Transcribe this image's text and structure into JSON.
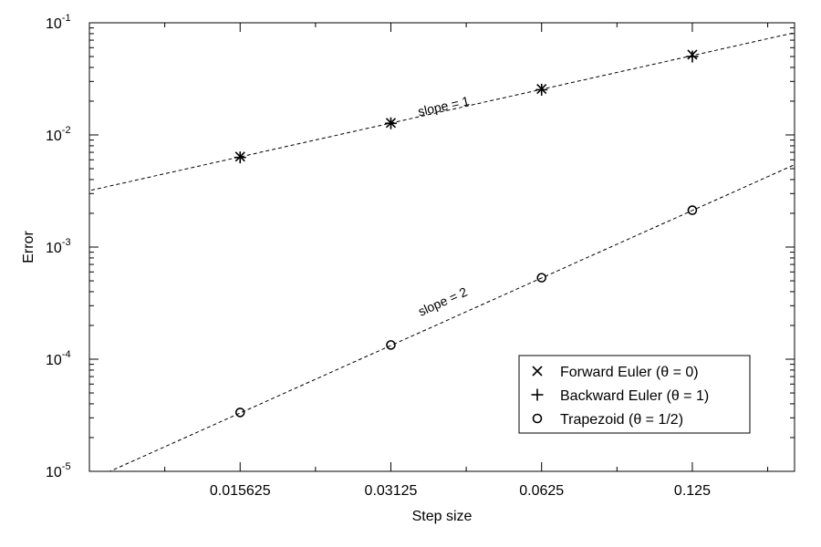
{
  "chart_data": {
    "type": "scatter",
    "title": "",
    "xlabel": "Step size",
    "ylabel": "Error",
    "x_scale": "log2",
    "y_scale": "log10",
    "xlim": [
      0.0078125,
      0.2
    ],
    "ylim": [
      1e-05,
      0.1
    ],
    "x_ticks": [
      {
        "value": 0.015625,
        "label": "0.015625"
      },
      {
        "value": 0.03125,
        "label": "0.03125"
      },
      {
        "value": 0.0625,
        "label": "0.0625"
      },
      {
        "value": 0.125,
        "label": "0.125"
      }
    ],
    "y_ticks": [
      {
        "value": 1e-05,
        "base": "10",
        "exp": "-5"
      },
      {
        "value": 0.0001,
        "base": "10",
        "exp": "-4"
      },
      {
        "value": 0.001,
        "base": "10",
        "exp": "-3"
      },
      {
        "value": 0.01,
        "base": "10",
        "exp": "-2"
      },
      {
        "value": 0.1,
        "base": "10",
        "exp": "-1"
      }
    ],
    "grid": false,
    "legend_position": "bottom-right",
    "series": [
      {
        "name": "Forward Euler (θ = 0)",
        "marker": "x",
        "x": [
          0.015625,
          0.03125,
          0.0625,
          0.125
        ],
        "y": [
          0.0064,
          0.0128,
          0.0257,
          0.052
        ]
      },
      {
        "name": "Backward Euler (θ = 1)",
        "marker": "plus",
        "x": [
          0.015625,
          0.03125,
          0.0625,
          0.125
        ],
        "y": [
          0.0063,
          0.0127,
          0.0253,
          0.05
        ]
      },
      {
        "name": "Trapezoid (θ = 1/2)",
        "marker": "circle",
        "x": [
          0.015625,
          0.03125,
          0.0625,
          0.125
        ],
        "y": [
          3.35e-05,
          0.000134,
          0.000533,
          0.00213
        ]
      }
    ],
    "reference_lines": [
      {
        "label": "slope = 1",
        "slope": 1,
        "anchor_x": 0.0625,
        "anchor_y": 0.0255,
        "label_x": 0.04,
        "label_y": 0.0165
      },
      {
        "label": "slope = 2",
        "slope": 2,
        "anchor_x": 0.0625,
        "anchor_y": 0.00053,
        "label_x": 0.04,
        "label_y": 0.0003
      }
    ]
  }
}
